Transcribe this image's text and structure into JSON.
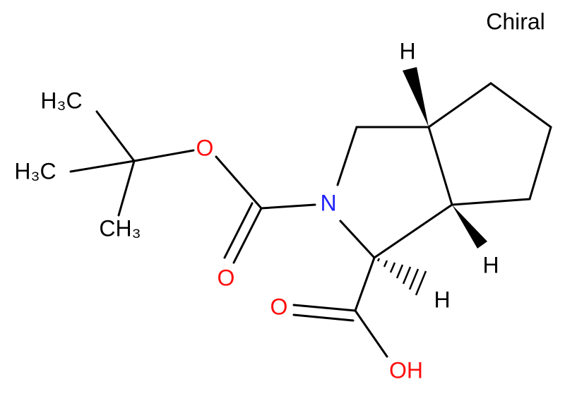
{
  "label": "Chiral",
  "atoms": {
    "methyl_top": "H₃C",
    "methyl_left": "H₃C",
    "methyl_bottom": "CH₃",
    "ester_o": "O",
    "carbonyl_o": "O",
    "n": "N",
    "acid_o": "O",
    "acid_oh": "OH",
    "h_top": "H",
    "h_right": "H",
    "h_acid": "H"
  }
}
